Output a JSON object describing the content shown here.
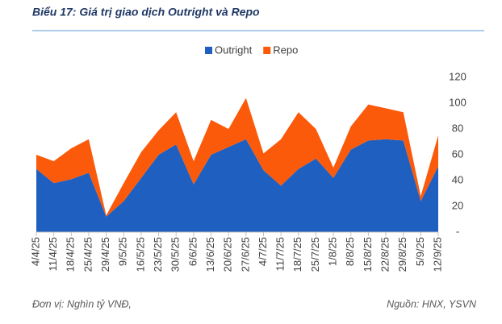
{
  "chart_data": {
    "type": "stacked_area",
    "title": "Biểu 17: Giá trị giao dịch Outright và Repo",
    "unit_note": "Đơn vị: Nghìn tỷ VNĐ,",
    "source": "Nguồn: HNX, YSVN",
    "categories": [
      "4/4/25",
      "11/4/25",
      "18/4/25",
      "25/4/25",
      "29/4/25",
      "9/5/25",
      "16/5/25",
      "23/5/25",
      "30/5/25",
      "6/6/25",
      "13/6/25",
      "20/6/25",
      "27/6/25",
      "4/7/25",
      "11/7/25",
      "18/7/25",
      "25/7/25",
      "1/8/25",
      "8/8/25",
      "15/8/25",
      "22/8/25",
      "29/8/25",
      "5/9/25",
      "12/9/25"
    ],
    "series": [
      {
        "name": "Outright",
        "color": "#1f5fc0",
        "values": [
          49,
          38,
          41,
          46,
          12,
          24,
          42,
          60,
          68,
          37,
          60,
          66,
          72,
          48,
          36,
          49,
          57,
          42,
          64,
          71,
          72,
          71,
          24,
          51
        ]
      },
      {
        "name": "Repo",
        "color": "#fb5a0a",
        "values": [
          11,
          17,
          24,
          26,
          1,
          14,
          20,
          19,
          25,
          18,
          27,
          14,
          32,
          13,
          36,
          44,
          23,
          8,
          18,
          28,
          24,
          22,
          4,
          24
        ]
      }
    ],
    "ylim": [
      0,
      120
    ],
    "yticks": [
      {
        "value": 0,
        "label": "-"
      },
      20,
      40,
      60,
      80,
      100,
      120
    ],
    "legend": "top"
  }
}
